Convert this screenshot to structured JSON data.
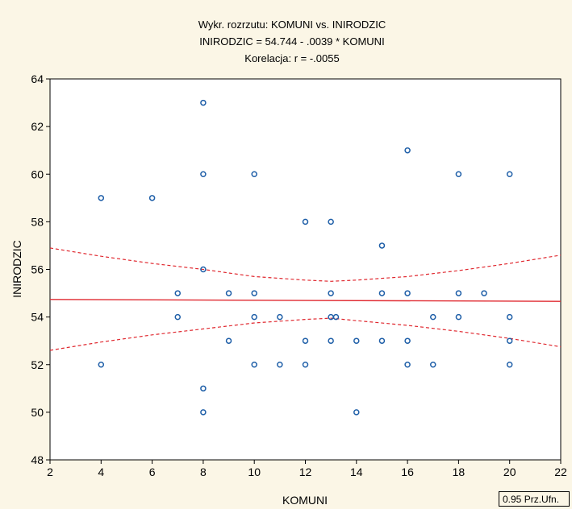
{
  "chart_data": {
    "type": "scatter",
    "title_lines": [
      "Wykr. rozrzutu: KOMUNI   vs. INIRODZIC",
      "INIRODZIC = 54.744 - .0039  * KOMUNI",
      "Korelacja: r =   -.0055"
    ],
    "xlabel": "KOMUNI",
    "ylabel": "INIRODZIC",
    "xlim": [
      2,
      22
    ],
    "ylim": [
      48,
      64
    ],
    "xticks": [
      2,
      4,
      6,
      8,
      10,
      12,
      14,
      16,
      18,
      20,
      22
    ],
    "yticks": [
      48,
      50,
      52,
      54,
      56,
      58,
      60,
      62,
      64
    ],
    "grid": false,
    "points": [
      [
        4,
        59
      ],
      [
        4,
        52
      ],
      [
        6,
        59
      ],
      [
        7,
        55
      ],
      [
        7,
        54
      ],
      [
        8,
        63
      ],
      [
        8,
        60
      ],
      [
        8,
        56
      ],
      [
        8,
        51
      ],
      [
        8,
        50
      ],
      [
        9,
        55
      ],
      [
        9,
        53
      ],
      [
        10,
        60
      ],
      [
        10,
        55
      ],
      [
        10,
        54
      ],
      [
        10,
        52
      ],
      [
        11,
        54
      ],
      [
        11,
        52
      ],
      [
        12,
        58
      ],
      [
        12,
        53
      ],
      [
        12,
        52
      ],
      [
        13,
        58
      ],
      [
        13,
        55
      ],
      [
        13,
        54
      ],
      [
        13.2,
        54
      ],
      [
        13,
        53
      ],
      [
        14,
        53
      ],
      [
        14,
        50
      ],
      [
        15,
        57
      ],
      [
        15,
        55
      ],
      [
        15,
        53
      ],
      [
        16,
        61
      ],
      [
        16,
        55
      ],
      [
        16,
        53
      ],
      [
        16,
        52
      ],
      [
        17,
        54
      ],
      [
        17,
        52
      ],
      [
        18,
        60
      ],
      [
        18,
        55
      ],
      [
        18,
        54
      ],
      [
        19,
        55
      ],
      [
        20,
        60
      ],
      [
        20,
        54
      ],
      [
        20,
        53
      ],
      [
        20,
        52
      ]
    ],
    "regression": {
      "intercept": 54.744,
      "slope": -0.0039
    },
    "confidence_band": {
      "level_label": "0.95 Prz.Ufn.",
      "x": [
        2,
        4,
        6,
        8,
        10,
        12,
        13,
        14,
        16,
        18,
        20,
        22
      ],
      "upper": [
        56.9,
        56.55,
        56.25,
        56.0,
        55.7,
        55.55,
        55.5,
        55.55,
        55.7,
        55.95,
        56.25,
        56.6
      ],
      "lower": [
        52.6,
        52.95,
        53.25,
        53.5,
        53.75,
        53.9,
        53.95,
        53.85,
        53.65,
        53.4,
        53.1,
        52.75
      ]
    },
    "colors": {
      "points": "#1f5fa8",
      "regression": "#e0282f",
      "band": "#e0282f"
    }
  }
}
